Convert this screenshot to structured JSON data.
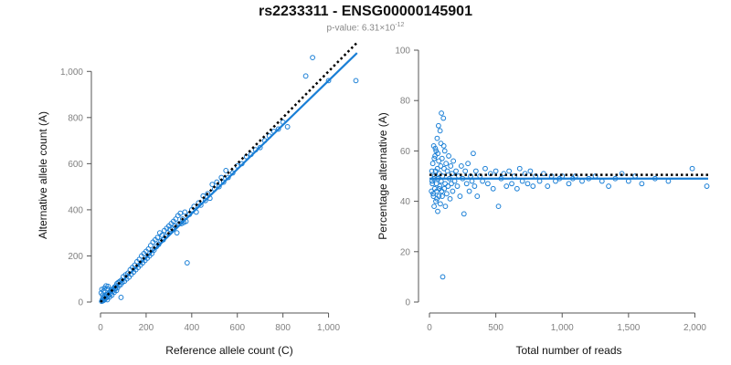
{
  "header": {
    "title": "rs2233311 - ENSG00000145901",
    "pvalue_prefix": "p-value: 6.31×10",
    "pvalue_exponent": "-12"
  },
  "colors": {
    "points": "#1a7fd6",
    "fit": "#1a7fd6",
    "reference": "#000000",
    "axis": "#555555",
    "ticks": "#808080"
  },
  "chart_data": [
    {
      "type": "scatter",
      "title": "",
      "xlabel": "Reference allele count (C)",
      "ylabel": "Alternative allele count (A)",
      "xlim": [
        0,
        1130
      ],
      "ylim": [
        0,
        1100
      ],
      "xticks": [
        0,
        200,
        400,
        600,
        800,
        1000
      ],
      "xtick_labels": [
        "0",
        "200",
        "400",
        "600",
        "800",
        "1,000"
      ],
      "yticks": [
        0,
        200,
        400,
        600,
        800,
        1000
      ],
      "ytick_labels": [
        "0",
        "200",
        "400",
        "600",
        "800",
        "1,000"
      ],
      "points": [
        [
          5,
          3
        ],
        [
          8,
          10
        ],
        [
          10,
          5
        ],
        [
          12,
          18
        ],
        [
          15,
          8
        ],
        [
          18,
          12
        ],
        [
          20,
          25
        ],
        [
          22,
          15
        ],
        [
          25,
          30
        ],
        [
          28,
          20
        ],
        [
          30,
          10
        ],
        [
          32,
          35
        ],
        [
          35,
          28
        ],
        [
          38,
          40
        ],
        [
          40,
          22
        ],
        [
          42,
          45
        ],
        [
          45,
          38
        ],
        [
          48,
          50
        ],
        [
          50,
          30
        ],
        [
          52,
          55
        ],
        [
          55,
          48
        ],
        [
          58,
          60
        ],
        [
          60,
          42
        ],
        [
          62,
          65
        ],
        [
          65,
          58
        ],
        [
          68,
          70
        ],
        [
          70,
          50
        ],
        [
          72,
          80
        ],
        [
          75,
          62
        ],
        [
          78,
          85
        ],
        [
          80,
          72
        ],
        [
          85,
          90
        ],
        [
          88,
          75
        ],
        [
          90,
          20
        ],
        [
          92,
          95
        ],
        [
          95,
          85
        ],
        [
          100,
          110
        ],
        [
          105,
          90
        ],
        [
          110,
          118
        ],
        [
          115,
          100
        ],
        [
          120,
          125
        ],
        [
          125,
          108
        ],
        [
          130,
          140
        ],
        [
          135,
          120
        ],
        [
          140,
          150
        ],
        [
          145,
          130
        ],
        [
          150,
          160
        ],
        [
          155,
          140
        ],
        [
          160,
          175
        ],
        [
          165,
          150
        ],
        [
          170,
          185
        ],
        [
          175,
          160
        ],
        [
          180,
          200
        ],
        [
          185,
          170
        ],
        [
          190,
          210
        ],
        [
          195,
          180
        ],
        [
          200,
          220
        ],
        [
          205,
          190
        ],
        [
          210,
          230
        ],
        [
          215,
          200
        ],
        [
          220,
          245
        ],
        [
          225,
          210
        ],
        [
          230,
          260
        ],
        [
          235,
          225
        ],
        [
          240,
          270
        ],
        [
          245,
          240
        ],
        [
          250,
          280
        ],
        [
          255,
          250
        ],
        [
          260,
          300
        ],
        [
          265,
          265
        ],
        [
          270,
          290
        ],
        [
          275,
          270
        ],
        [
          280,
          310
        ],
        [
          285,
          285
        ],
        [
          290,
          320
        ],
        [
          295,
          300
        ],
        [
          300,
          330
        ],
        [
          305,
          315
        ],
        [
          310,
          340
        ],
        [
          315,
          320
        ],
        [
          320,
          350
        ],
        [
          325,
          330
        ],
        [
          330,
          360
        ],
        [
          335,
          300
        ],
        [
          340,
          375
        ],
        [
          345,
          340
        ],
        [
          350,
          385
        ],
        [
          355,
          340
        ],
        [
          360,
          360
        ],
        [
          365,
          345
        ],
        [
          370,
          390
        ],
        [
          375,
          350
        ],
        [
          380,
          170
        ],
        [
          390,
          380
        ],
        [
          400,
          400
        ],
        [
          410,
          415
        ],
        [
          420,
          390
        ],
        [
          430,
          430
        ],
        [
          440,
          420
        ],
        [
          450,
          460
        ],
        [
          460,
          440
        ],
        [
          470,
          470
        ],
        [
          480,
          450
        ],
        [
          490,
          510
        ],
        [
          500,
          490
        ],
        [
          510,
          520
        ],
        [
          520,
          500
        ],
        [
          530,
          540
        ],
        [
          540,
          520
        ],
        [
          550,
          570
        ],
        [
          560,
          540
        ],
        [
          580,
          560
        ],
        [
          600,
          590
        ],
        [
          620,
          600
        ],
        [
          640,
          630
        ],
        [
          660,
          640
        ],
        [
          680,
          660
        ],
        [
          700,
          670
        ],
        [
          720,
          700
        ],
        [
          740,
          720
        ],
        [
          760,
          740
        ],
        [
          780,
          750
        ],
        [
          800,
          780
        ],
        [
          820,
          760
        ],
        [
          900,
          980
        ],
        [
          930,
          1060
        ],
        [
          1000,
          960
        ],
        [
          1120,
          960
        ],
        [
          3,
          40
        ],
        [
          6,
          55
        ],
        [
          9,
          30
        ],
        [
          14,
          48
        ],
        [
          17,
          60
        ],
        [
          24,
          70
        ],
        [
          29,
          58
        ],
        [
          33,
          68
        ]
      ],
      "fit_line": {
        "x": [
          0,
          1125
        ],
        "y": [
          0,
          1080
        ]
      },
      "reference_line": {
        "x": [
          0,
          1125
        ],
        "y": [
          0,
          1125
        ]
      }
    },
    {
      "type": "scatter",
      "title": "",
      "xlabel": "Total number of reads",
      "ylabel": "Percentage alternative (A)",
      "xlim": [
        0,
        2100
      ],
      "ylim": [
        0,
        100
      ],
      "xticks": [
        0,
        500,
        1000,
        1500,
        2000
      ],
      "xtick_labels": [
        "0",
        "500",
        "1,000",
        "1,500",
        "2,000"
      ],
      "yticks": [
        0,
        20,
        40,
        60,
        80,
        100
      ],
      "ytick_labels": [
        "0",
        "20",
        "40",
        "60",
        "80",
        "100"
      ],
      "points": [
        [
          20,
          48
        ],
        [
          25,
          55
        ],
        [
          30,
          42
        ],
        [
          32,
          62
        ],
        [
          35,
          38
        ],
        [
          38,
          50
        ],
        [
          40,
          45
        ],
        [
          42,
          58
        ],
        [
          45,
          52
        ],
        [
          48,
          40
        ],
        [
          50,
          60
        ],
        [
          52,
          47
        ],
        [
          55,
          44
        ],
        [
          58,
          65
        ],
        [
          60,
          53
        ],
        [
          62,
          36
        ],
        [
          65,
          49
        ],
        [
          68,
          70
        ],
        [
          70,
          56
        ],
        [
          72,
          42
        ],
        [
          75,
          51
        ],
        [
          78,
          46
        ],
        [
          80,
          68
        ],
        [
          82,
          39
        ],
        [
          85,
          54
        ],
        [
          88,
          48
        ],
        [
          90,
          75
        ],
        [
          92,
          44
        ],
        [
          95,
          57
        ],
        [
          98,
          50
        ],
        [
          100,
          10
        ],
        [
          105,
          73
        ],
        [
          108,
          62
        ],
        [
          110,
          53
        ],
        [
          112,
          45
        ],
        [
          115,
          60
        ],
        [
          118,
          47
        ],
        [
          120,
          38
        ],
        [
          125,
          55
        ],
        [
          130,
          43
        ],
        [
          135,
          52
        ],
        [
          140,
          46
        ],
        [
          145,
          58
        ],
        [
          150,
          49
        ],
        [
          155,
          41
        ],
        [
          160,
          54
        ],
        [
          165,
          47
        ],
        [
          170,
          51
        ],
        [
          175,
          44
        ],
        [
          180,
          56
        ],
        [
          190,
          48
        ],
        [
          200,
          52
        ],
        [
          210,
          46
        ],
        [
          220,
          50
        ],
        [
          230,
          42
        ],
        [
          240,
          54
        ],
        [
          250,
          49
        ],
        [
          260,
          35
        ],
        [
          270,
          52
        ],
        [
          280,
          47
        ],
        [
          290,
          55
        ],
        [
          300,
          44
        ],
        [
          310,
          50
        ],
        [
          320,
          48
        ],
        [
          330,
          59
        ],
        [
          340,
          46
        ],
        [
          350,
          52
        ],
        [
          360,
          42
        ],
        [
          380,
          50
        ],
        [
          400,
          48
        ],
        [
          420,
          53
        ],
        [
          440,
          47
        ],
        [
          460,
          51
        ],
        [
          480,
          45
        ],
        [
          500,
          52
        ],
        [
          520,
          38
        ],
        [
          540,
          49
        ],
        [
          560,
          51
        ],
        [
          580,
          46
        ],
        [
          600,
          52
        ],
        [
          620,
          47
        ],
        [
          640,
          50
        ],
        [
          660,
          45
        ],
        [
          680,
          53
        ],
        [
          700,
          48
        ],
        [
          720,
          51
        ],
        [
          740,
          47
        ],
        [
          760,
          52
        ],
        [
          780,
          46
        ],
        [
          800,
          50
        ],
        [
          830,
          48
        ],
        [
          860,
          51
        ],
        [
          890,
          46
        ],
        [
          920,
          50
        ],
        [
          950,
          48
        ],
        [
          980,
          49
        ],
        [
          1000,
          50
        ],
        [
          1050,
          47
        ],
        [
          1080,
          49
        ],
        [
          1100,
          50
        ],
        [
          1150,
          48
        ],
        [
          1200,
          49
        ],
        [
          1250,
          50
        ],
        [
          1300,
          48
        ],
        [
          1350,
          46
        ],
        [
          1400,
          49
        ],
        [
          1450,
          51
        ],
        [
          1500,
          48
        ],
        [
          1550,
          50
        ],
        [
          1600,
          47
        ],
        [
          1700,
          49
        ],
        [
          1800,
          48
        ],
        [
          1980,
          53
        ],
        [
          2090,
          46
        ],
        [
          15,
          44
        ],
        [
          18,
          52
        ],
        [
          22,
          47
        ],
        [
          28,
          43
        ],
        [
          33,
          49
        ],
        [
          36,
          57
        ],
        [
          44,
          61
        ],
        [
          56,
          41
        ],
        [
          63,
          59
        ],
        [
          74,
          45
        ],
        [
          86,
          63
        ],
        [
          96,
          42
        ]
      ],
      "fit_line": {
        "x": [
          0,
          2100
        ],
        "y": [
          49,
          49
        ]
      },
      "reference_line": {
        "x": [
          0,
          2100
        ],
        "y": [
          50.5,
          50.5
        ]
      }
    }
  ]
}
